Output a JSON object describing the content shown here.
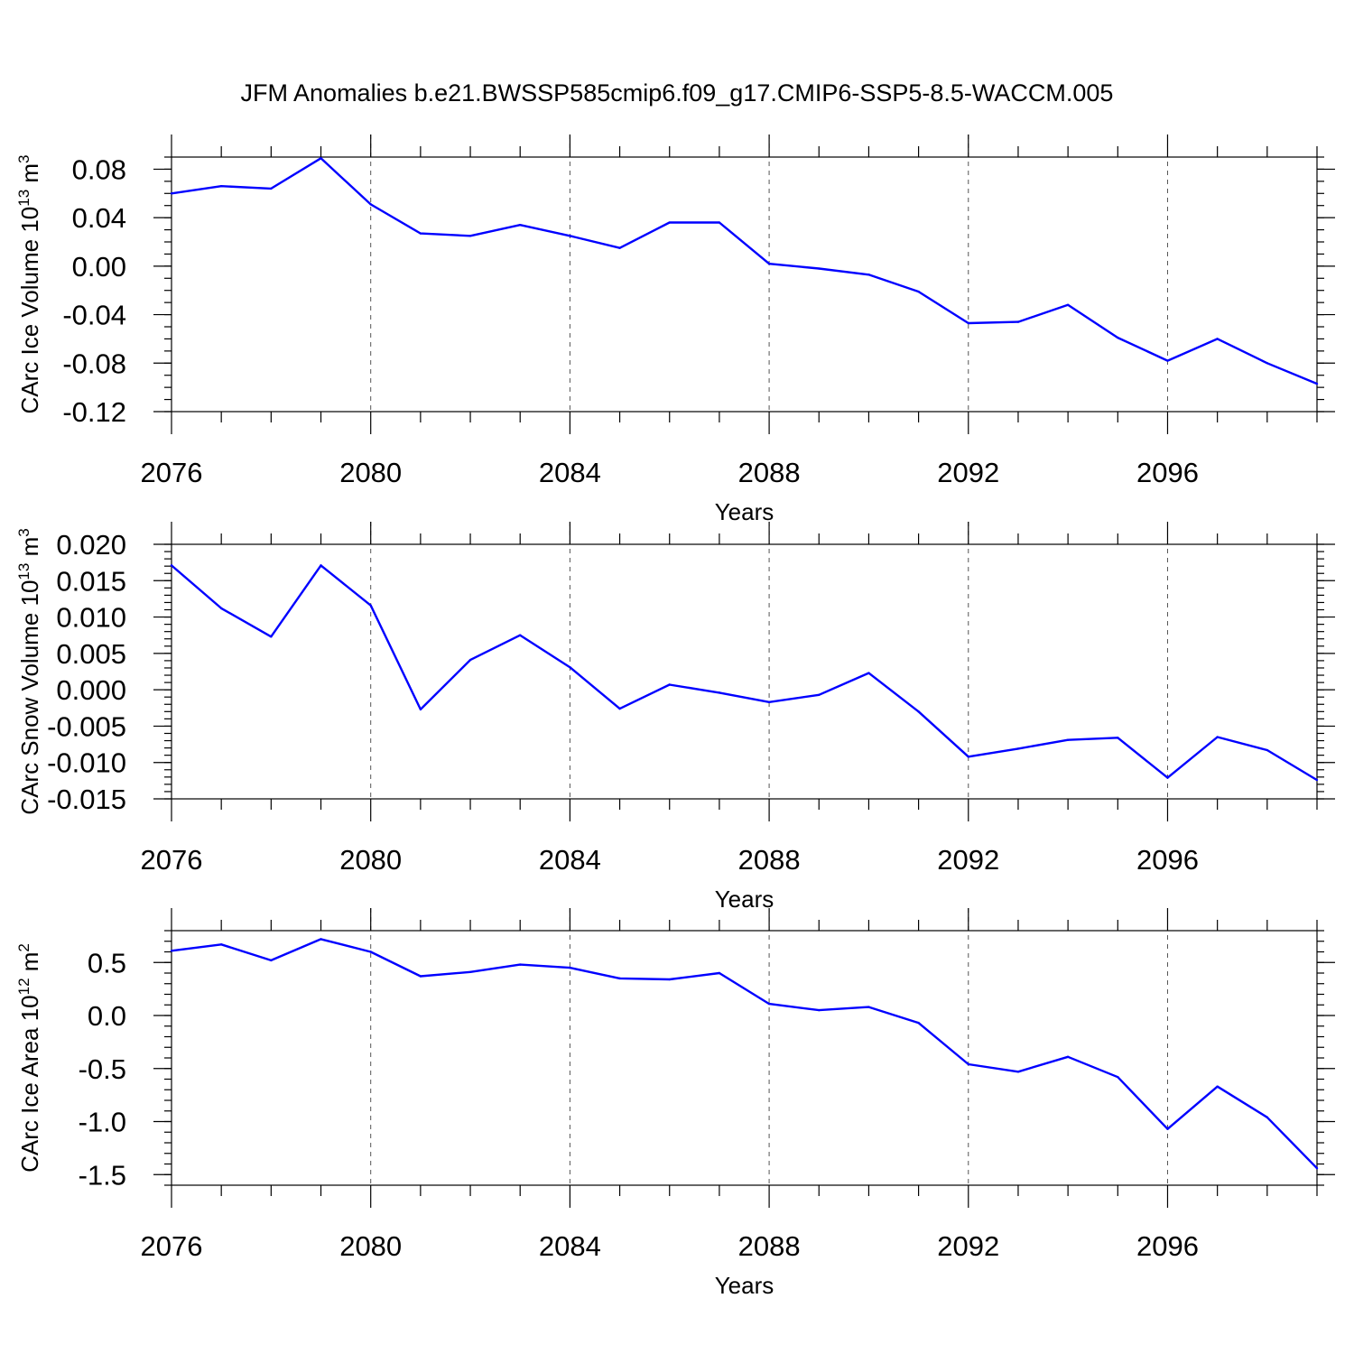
{
  "title": "JFM Anomalies b.e21.BWSSP585cmip6.f09_g17.CMIP6-SSP5-8.5-WACCM.005",
  "colors": {
    "line": "#0000ff",
    "axis": "#000000",
    "grid": "#555555"
  },
  "chart_data": [
    {
      "type": "line",
      "ylabel": "CArc Ice Volume 10",
      "ylabel_sup": "13",
      "ylabel_unit": "m",
      "ylabel_unit_sup": "3",
      "xlabel": "Years",
      "xlim": [
        2076,
        2099
      ],
      "ylim": [
        -0.12,
        0.09
      ],
      "x_ticks": [
        2076,
        2080,
        2084,
        2088,
        2092,
        2096
      ],
      "y_ticks": [
        -0.12,
        -0.08,
        -0.04,
        0.0,
        0.04,
        0.08
      ],
      "y_tick_labels": [
        "-0.12",
        "-0.08",
        "-0.04",
        "0.00",
        "0.04",
        "0.08"
      ],
      "x_tick_labels": [
        "2076",
        "2080",
        "2084",
        "2088",
        "2092",
        "2096"
      ],
      "y_minor_step": 0.01,
      "grid": "vertical dashed at major x ticks",
      "x": [
        2076,
        2077,
        2078,
        2079,
        2080,
        2081,
        2082,
        2083,
        2084,
        2085,
        2086,
        2087,
        2088,
        2089,
        2090,
        2091,
        2092,
        2093,
        2094,
        2095,
        2096,
        2097,
        2098,
        2099
      ],
      "values": [
        0.06,
        0.066,
        0.064,
        0.089,
        0.051,
        0.027,
        0.025,
        0.034,
        0.025,
        0.015,
        0.036,
        0.036,
        0.002,
        -0.002,
        -0.007,
        -0.021,
        -0.047,
        -0.046,
        -0.032,
        -0.059,
        -0.078,
        -0.06,
        -0.08,
        -0.097
      ]
    },
    {
      "type": "line",
      "ylabel": "CArc Snow Volume 10",
      "ylabel_sup": "13",
      "ylabel_unit": "m",
      "ylabel_unit_sup": "3",
      "xlabel": "Years",
      "xlim": [
        2076,
        2099
      ],
      "ylim": [
        -0.015,
        0.02
      ],
      "x_ticks": [
        2076,
        2080,
        2084,
        2088,
        2092,
        2096
      ],
      "y_ticks": [
        -0.015,
        -0.01,
        -0.005,
        0.0,
        0.005,
        0.01,
        0.015,
        0.02
      ],
      "y_tick_labels": [
        "-0.015",
        "-0.010",
        "-0.005",
        "0.000",
        "0.005",
        "0.010",
        "0.015",
        "0.020"
      ],
      "x_tick_labels": [
        "2076",
        "2080",
        "2084",
        "2088",
        "2092",
        "2096"
      ],
      "y_minor_step": 0.001,
      "grid": "vertical dashed at major x ticks",
      "x": [
        2076,
        2077,
        2078,
        2079,
        2080,
        2081,
        2082,
        2083,
        2084,
        2085,
        2086,
        2087,
        2088,
        2089,
        2090,
        2091,
        2092,
        2093,
        2094,
        2095,
        2096,
        2097,
        2098,
        2099
      ],
      "values": [
        0.0171,
        0.0112,
        0.0073,
        0.0171,
        0.0116,
        -0.0027,
        0.0041,
        0.0075,
        0.0031,
        -0.0026,
        0.0007,
        -0.0004,
        -0.0017,
        -0.0007,
        0.0023,
        -0.003,
        -0.0092,
        -0.0081,
        -0.0069,
        -0.0066,
        -0.0121,
        -0.0065,
        -0.0083,
        -0.0124
      ]
    },
    {
      "type": "line",
      "ylabel": "CArc Ice Area 10",
      "ylabel_sup": "12",
      "ylabel_unit": "m",
      "ylabel_unit_sup": "2",
      "xlabel": "Years",
      "xlim": [
        2076,
        2099
      ],
      "ylim": [
        -1.6,
        0.8
      ],
      "x_ticks": [
        2076,
        2080,
        2084,
        2088,
        2092,
        2096
      ],
      "y_ticks": [
        -1.5,
        -1.0,
        -0.5,
        0.0,
        0.5
      ],
      "y_tick_labels": [
        "-1.5",
        "-1.0",
        "-0.5",
        "0.0",
        "0.5"
      ],
      "x_tick_labels": [
        "2076",
        "2080",
        "2084",
        "2088",
        "2092",
        "2096"
      ],
      "y_minor_step": 0.1,
      "grid": "vertical dashed at major x ticks",
      "x": [
        2076,
        2077,
        2078,
        2079,
        2080,
        2081,
        2082,
        2083,
        2084,
        2085,
        2086,
        2087,
        2088,
        2089,
        2090,
        2091,
        2092,
        2093,
        2094,
        2095,
        2096,
        2097,
        2098,
        2099
      ],
      "values": [
        0.61,
        0.67,
        0.52,
        0.72,
        0.6,
        0.37,
        0.41,
        0.48,
        0.45,
        0.35,
        0.34,
        0.4,
        0.11,
        0.05,
        0.08,
        -0.07,
        -0.46,
        -0.53,
        -0.39,
        -0.58,
        -1.07,
        -0.67,
        -0.96,
        -1.44
      ]
    }
  ]
}
